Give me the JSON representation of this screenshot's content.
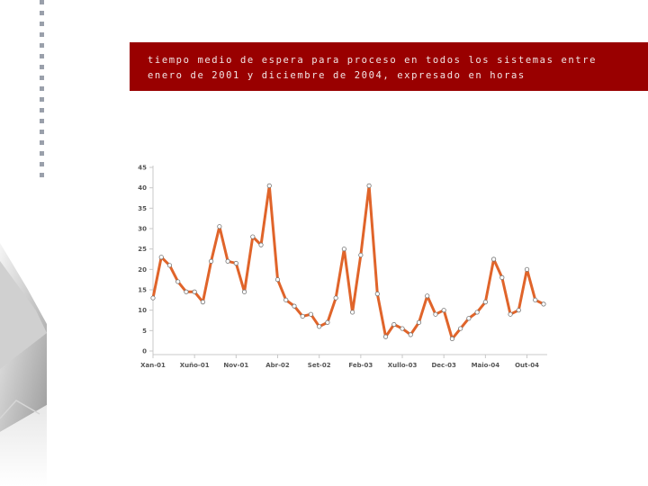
{
  "slide": {
    "title_line1": "tiempo medio de espera para proceso en todos los sistemas entre",
    "title_line2": "enero de 2001 y diciembre de 2004, expresado en horas",
    "accent_color": "#990000"
  },
  "chart_data": {
    "type": "line",
    "title": "",
    "xlabel": "",
    "ylabel": "",
    "ylim": [
      0,
      45
    ],
    "yticks": [
      0,
      5,
      10,
      15,
      20,
      25,
      30,
      35,
      40,
      45
    ],
    "grid": false,
    "line_color": "#e0642a",
    "x_tick_labels": [
      "Xan-01",
      "Xuño-01",
      "Nov-01",
      "Abr-02",
      "Set-02",
      "Feb-03",
      "Xullo-03",
      "Dec-03",
      "Maio-04",
      "Out-04"
    ],
    "x_tick_index": [
      0,
      5,
      10,
      15,
      20,
      25,
      30,
      35,
      40,
      45
    ],
    "series": [
      {
        "values": [
          13,
          23,
          21,
          17,
          14.5,
          14.5,
          12,
          22,
          30.5,
          22,
          21.5,
          14.5,
          28,
          26,
          40.5,
          17.5,
          12.5,
          11,
          8.5,
          9,
          6,
          7,
          13,
          25,
          9.5,
          23.5,
          40.5,
          14,
          3.5,
          6.5,
          5.5,
          4,
          7,
          13.5,
          9,
          10,
          3,
          5.5,
          8,
          9.5,
          12,
          22.5,
          18,
          9,
          10,
          20,
          12.5,
          11.5
        ]
      }
    ]
  }
}
